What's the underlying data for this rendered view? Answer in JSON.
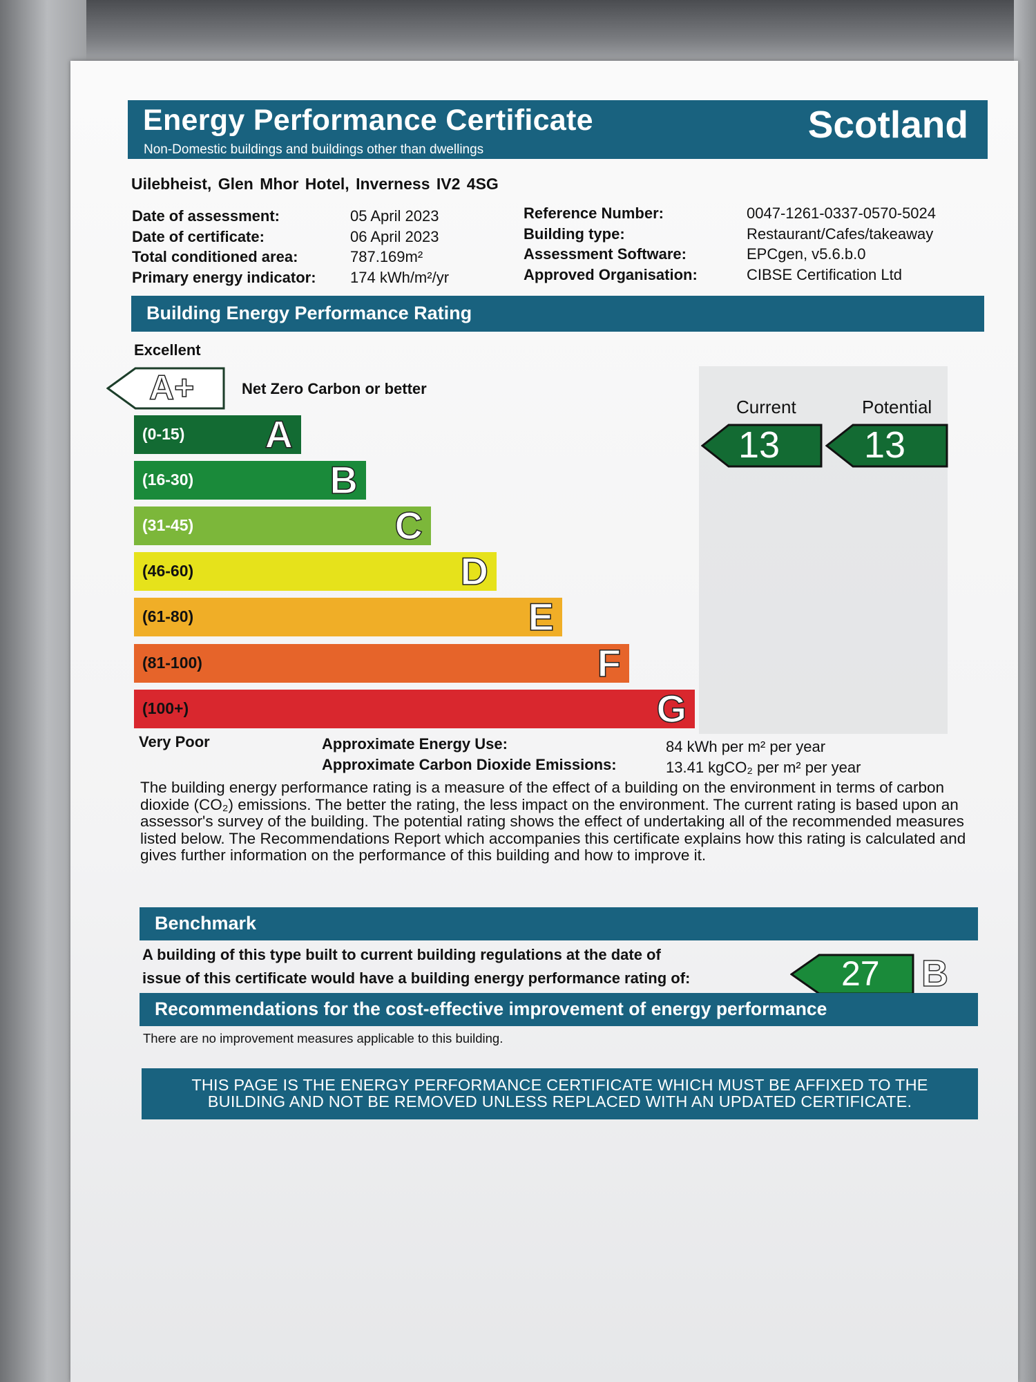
{
  "header": {
    "title": "Energy Performance Certificate",
    "subtitle": "Non-Domestic buildings and buildings other than dwellings",
    "country": "Scotland"
  },
  "address": "Uilebheist,  Glen Mhor Hotel, Inverness IV2 4SG",
  "details_left": [
    {
      "label": "Date of assessment:",
      "value": "05 April 2023"
    },
    {
      "label": "Date of certificate:",
      "value": "06 April 2023"
    },
    {
      "label": "Total conditioned area:",
      "value": "787.169m²"
    },
    {
      "label": "Primary energy indicator:",
      "value": "174 kWh/m²/yr"
    }
  ],
  "details_right": [
    {
      "label": "Reference Number:",
      "value": "0047-1261-0337-0570-5024"
    },
    {
      "label": "Building type:",
      "value": "Restaurant/Cafes/takeaway"
    },
    {
      "label": "Assessment Software:",
      "value": "EPCgen, v5.6.b.0"
    },
    {
      "label": "Approved Organisation:",
      "value": "CIBSE Certification Ltd"
    }
  ],
  "rating": {
    "heading": "Building Energy Performance Rating",
    "top_label": "Excellent",
    "bottom_label": "Very Poor",
    "aplus_letter": "A+",
    "aplus_text": "Net Zero Carbon or better",
    "bands": [
      {
        "range": "(0-15)",
        "letter": "A",
        "color": "#136b33"
      },
      {
        "range": "(16-30)",
        "letter": "B",
        "color": "#1a8a3a"
      },
      {
        "range": "(31-45)",
        "letter": "C",
        "color": "#7cb73a"
      },
      {
        "range": "(46-60)",
        "letter": "D",
        "color": "#e6e21b"
      },
      {
        "range": "(61-80)",
        "letter": "E",
        "color": "#f0ae27"
      },
      {
        "range": "(81-100)",
        "letter": "F",
        "color": "#e6642a"
      },
      {
        "range": "(100+)",
        "letter": "G",
        "color": "#d9272e"
      }
    ],
    "current_label": "Current",
    "potential_label": "Potential",
    "current_value": "13",
    "potential_value": "13"
  },
  "energy_use": {
    "energy_label": "Approximate Energy Use:",
    "energy_value": "84 kWh per m² per year",
    "co2_label": "Approximate Carbon Dioxide Emissions:",
    "co2_value": "13.41 kgCO₂ per m² per year"
  },
  "description": "The building energy performance rating is a measure of the effect of a building on the environment in terms of carbon dioxide (CO₂) emissions. The better the rating, the less impact on the environment. The current rating is based upon an assessor's survey of the building. The potential rating shows the effect of undertaking all of the recommended measures listed below. The Recommendations Report which accompanies this certificate explains how this rating is calculated and gives further information on the performance of this building and how to improve it.",
  "benchmark": {
    "heading": "Benchmark",
    "line1": "A building of this type built to current building regulations at the date of",
    "line2": "issue of this certificate would have a building energy performance rating of:",
    "value": "27",
    "band": "B"
  },
  "recommendations": {
    "heading": "Recommendations for the cost-effective improvement of energy performance",
    "text": "There are no improvement measures applicable to this building."
  },
  "footer": {
    "line1": "THIS PAGE IS THE ENERGY PERFORMANCE CERTIFICATE WHICH MUST BE AFFIXED TO THE",
    "line2": "BUILDING AND NOT BE REMOVED UNLESS REPLACED WITH AN UPDATED CERTIFICATE."
  },
  "colors": {
    "brand_teal": "#19627f",
    "rating_green": "#136b33"
  }
}
